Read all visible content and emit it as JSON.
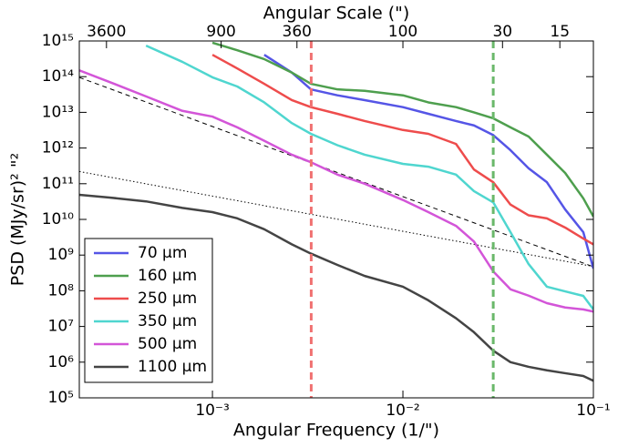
{
  "chart_data": {
    "type": "line",
    "title": "Angular Scale (\")",
    "xlabel": "Angular Frequency (1/\")",
    "ylabel": "PSD (MJy/sr)² \"²",
    "xscale": "log",
    "yscale": "log",
    "x2scale": "log",
    "xlim": [
      0.0002,
      0.1
    ],
    "ylim": [
      100000.0,
      1000000000000000.0
    ],
    "x2lim": [
      5000,
      10
    ],
    "xticks": [
      {
        "value": 0.001,
        "label": "10⁻³"
      },
      {
        "value": 0.01,
        "label": "10⁻²"
      },
      {
        "value": 0.1,
        "label": "10⁻¹"
      }
    ],
    "yticks": [
      {
        "value": 100000.0,
        "label": "10⁵"
      },
      {
        "value": 1000000.0,
        "label": "10⁶"
      },
      {
        "value": 10000000.0,
        "label": "10⁷"
      },
      {
        "value": 100000000.0,
        "label": "10⁸"
      },
      {
        "value": 1000000000.0,
        "label": "10⁹"
      },
      {
        "value": 10000000000.0,
        "label": "10¹⁰"
      },
      {
        "value": 100000000000.0,
        "label": "10¹¹"
      },
      {
        "value": 1000000000000.0,
        "label": "10¹²"
      },
      {
        "value": 10000000000000.0,
        "label": "10¹³"
      },
      {
        "value": 100000000000000.0,
        "label": "10¹⁴"
      },
      {
        "value": 1000000000000000.0,
        "label": "10¹⁵"
      }
    ],
    "x2ticks": [
      3600,
      900,
      360,
      100,
      30,
      15
    ],
    "grid": false,
    "legend": "lower left",
    "x": [
      0.0002,
      0.000288,
      0.000448,
      0.000695,
      0.001,
      0.00135,
      0.00187,
      0.00261,
      0.00329,
      0.00453,
      0.0063,
      0.01,
      0.0136,
      0.019,
      0.0236,
      0.0298,
      0.0367,
      0.0457,
      0.057,
      0.0711,
      0.0885,
      0.1
    ],
    "series": [
      {
        "name": "70 μm",
        "color": "#5555e6",
        "values": [
          null,
          null,
          null,
          null,
          null,
          null,
          410000000000000.0,
          130000000000000.0,
          44000000000000.0,
          30000000000000.0,
          22000000000000.0,
          14000000000000.0,
          9100000000000.0,
          5700000000000.0,
          4300000000000.0,
          2300000000000.0,
          870000000000.0,
          270000000000.0,
          110000000000.0,
          19000000000.0,
          4400000000.0,
          420000000.0
        ]
      },
      {
        "name": "160 μm",
        "color": "#4e9f4e",
        "values": [
          null,
          null,
          null,
          null,
          890000000000000.0,
          550000000000000.0,
          310000000000000.0,
          130000000000000.0,
          63000000000000.0,
          44000000000000.0,
          40000000000000.0,
          30000000000000.0,
          19000000000000.0,
          14000000000000.0,
          10000000000000.0,
          6800000000000.0,
          3800000000000.0,
          2100000000000.0,
          650000000000.0,
          200000000000.0,
          39000000000.0,
          12000000000.0
        ]
      },
      {
        "name": "250 μm",
        "color": "#ee4c4c",
        "values": [
          null,
          null,
          null,
          null,
          410000000000000.0,
          170000000000000.0,
          63000000000000.0,
          22000000000000.0,
          14000000000000.0,
          9100000000000.0,
          5700000000000.0,
          3200000000000.0,
          2500000000000.0,
          1300000000000.0,
          250000000000.0,
          110000000000.0,
          26000000000.0,
          13000000000.0,
          10700000000.0,
          5900000000.0,
          2900000000.0,
          2000000000.0
        ]
      },
      {
        "name": "350 μm",
        "color": "#4fd6cf",
        "values": [
          null,
          null,
          740000000000000.0,
          260000000000000.0,
          96000000000000.0,
          53000000000000.0,
          19000000000000.0,
          5000000000000.0,
          2500000000000.0,
          1200000000000.0,
          650000000000.0,
          360000000000.0,
          300000000000.0,
          180000000000.0,
          62000000000.0,
          30000000000.0,
          4400000000.0,
          560000000.0,
          130000000.0,
          96000000.0,
          72000000.0,
          30000000.0
        ]
      },
      {
        "name": "500 μm",
        "color": "#d355d8",
        "values": [
          150000000000000.0,
          71000000000000.0,
          28000000000000.0,
          11000000000000.0,
          7600000000000.0,
          3800000000000.0,
          1600000000000.0,
          650000000000.0,
          400000000000.0,
          180000000000.0,
          100000000000.0,
          35000000000.0,
          16000000000.0,
          6600000000.0,
          2400000000.0,
          350000000.0,
          110000000.0,
          73000000.0,
          45000000.0,
          34000000.0,
          30000000.0,
          26000000.0
        ]
      },
      {
        "name": "1100 μm",
        "color": "#444444",
        "values": [
          49000000000.0,
          41000000000.0,
          32000000000.0,
          21000000000.0,
          16000000000.0,
          10700000000.0,
          5300000000.0,
          2000000000.0,
          1100000000.0,
          530000000.0,
          260000000.0,
          130000000.0,
          54000000.0,
          17000000.0,
          6900000.0,
          2100000.0,
          1000000.0,
          740000.0,
          590000.0,
          490000.0,
          410000.0,
          300000.0
        ]
      }
    ],
    "reference_lines": [
      {
        "style": "dashed",
        "color": "#000000",
        "x": [
          0.0002,
          0.1
        ],
        "values": [
          95000000000000.0,
          470000000.0
        ]
      },
      {
        "style": "dotted",
        "color": "#000000",
        "x": [
          0.0002,
          0.1
        ],
        "values": [
          220000000000.0,
          480000000.0
        ]
      }
    ],
    "vlines": [
      {
        "x": 0.0033,
        "color": "#f07272"
      },
      {
        "x": 0.0298,
        "color": "#6ab86a"
      }
    ]
  }
}
